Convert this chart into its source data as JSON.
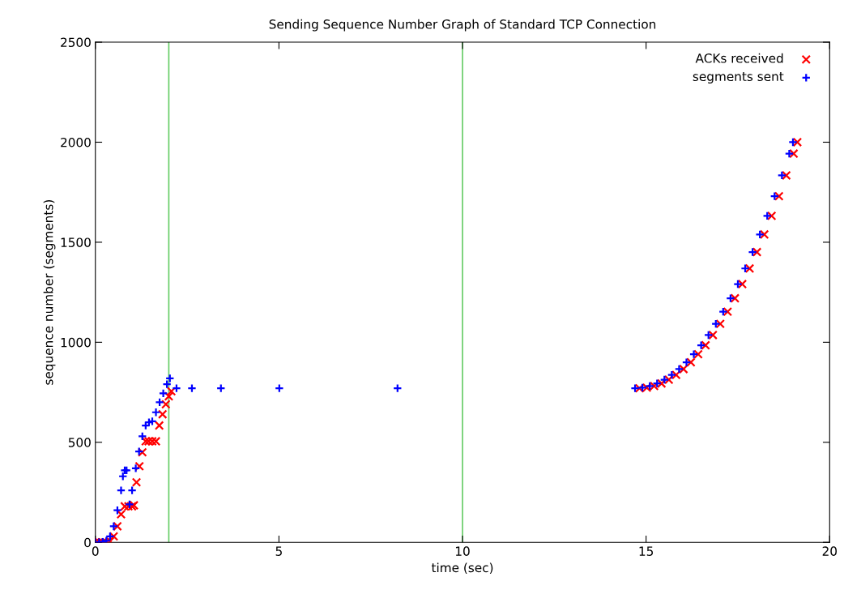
{
  "chart_data": {
    "type": "scatter",
    "title": "Sending Sequence Number Graph of Standard TCP Connection",
    "xlabel": "time (sec)",
    "ylabel": "sequence number (segments)",
    "xlim": [
      0,
      20
    ],
    "xticks": [
      0,
      5,
      10,
      15,
      20
    ],
    "ylim": [
      0,
      2500
    ],
    "yticks": [
      0,
      500,
      1000,
      1500,
      2000,
      2500
    ],
    "grid": false,
    "legend": "top right",
    "ref_lines": [
      {
        "axis": "x",
        "value": 2,
        "color": "#66cc66"
      },
      {
        "axis": "x",
        "value": 10,
        "color": "#66cc66"
      }
    ],
    "series": [
      {
        "name": "ACKs received",
        "color": "#ff0000",
        "marker": "cross",
        "x": [
          0,
          0.1,
          0.2,
          0.3,
          0.4,
          0.5,
          0.6,
          0.7,
          0.8,
          0.9,
          1.0,
          1.05,
          1.12,
          1.2,
          1.28,
          1.37,
          1.45,
          1.55,
          1.65,
          1.74,
          1.83,
          1.92,
          2.0,
          2.07,
          14.82,
          15.02,
          15.22,
          15.42,
          15.62,
          15.82,
          16.02,
          16.22,
          16.42,
          16.62,
          16.82,
          17.02,
          17.22,
          17.42,
          17.62,
          17.82,
          18.02,
          18.22,
          18.42,
          18.62,
          18.82,
          19.02,
          19.12
        ],
        "values": [
          0,
          0,
          0,
          0,
          5,
          30,
          80,
          140,
          180,
          180,
          180,
          185,
          300,
          380,
          450,
          505,
          505,
          505,
          505,
          584,
          640,
          690,
          730,
          755,
          770,
          773,
          781,
          794,
          813,
          837,
          866,
          900,
          940,
          985,
          1036,
          1092,
          1153,
          1220,
          1291,
          1369,
          1451,
          1539,
          1632,
          1730,
          1834,
          1943,
          2000
        ]
      },
      {
        "name": "segments sent",
        "color": "#0000ff",
        "marker": "plus",
        "x": [
          0,
          0.1,
          0.2,
          0.3,
          0.4,
          0.5,
          0.6,
          0.7,
          0.75,
          0.8,
          0.85,
          0.93,
          1.0,
          1.1,
          1.19,
          1.28,
          1.37,
          1.46,
          1.55,
          1.65,
          1.75,
          1.85,
          1.95,
          2.03,
          2.21,
          2.63,
          3.42,
          5.01,
          8.23,
          14.7,
          14.9,
          15.1,
          15.3,
          15.5,
          15.7,
          15.9,
          16.1,
          16.3,
          16.5,
          16.7,
          16.9,
          17.1,
          17.3,
          17.5,
          17.7,
          17.9,
          18.1,
          18.3,
          18.5,
          18.7,
          18.9,
          19.0
        ],
        "values": [
          0,
          0,
          2,
          8,
          30,
          80,
          160,
          260,
          330,
          360,
          360,
          190,
          260,
          370,
          454,
          530,
          584,
          600,
          605,
          650,
          700,
          745,
          790,
          820,
          770,
          770,
          770,
          770,
          770,
          770,
          773,
          781,
          794,
          813,
          837,
          866,
          900,
          940,
          985,
          1036,
          1092,
          1153,
          1220,
          1291,
          1369,
          1451,
          1539,
          1632,
          1730,
          1834,
          1943,
          2000
        ]
      }
    ]
  }
}
